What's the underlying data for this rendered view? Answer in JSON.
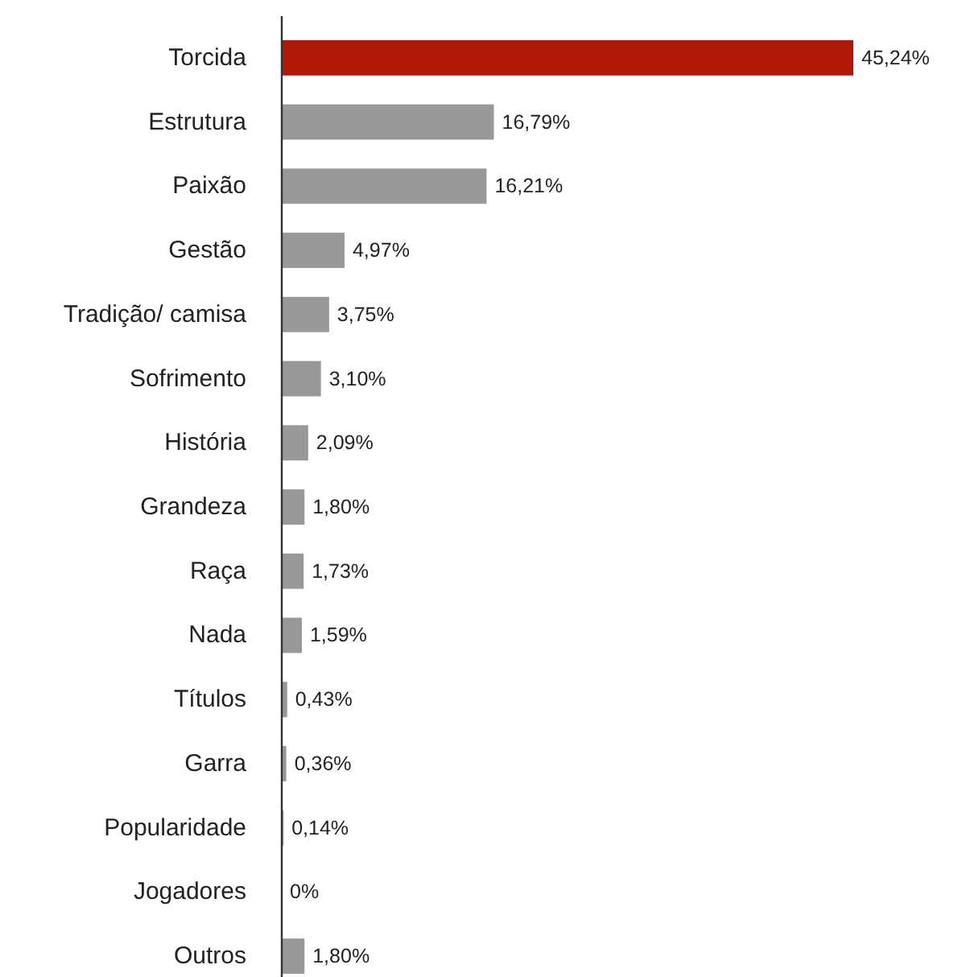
{
  "chart_data": {
    "type": "bar",
    "orientation": "horizontal",
    "categories": [
      "Torcida",
      "Estrutura",
      "Paixão",
      "Gestão",
      "Tradição/ camisa",
      "Sofrimento",
      "História",
      "Grandeza",
      "Raça",
      "Nada",
      "Títulos",
      "Garra",
      "Popularidade",
      "Jogadores",
      "Outros"
    ],
    "values": [
      45.24,
      16.79,
      16.21,
      4.97,
      3.75,
      3.1,
      2.09,
      1.8,
      1.73,
      1.59,
      0.43,
      0.36,
      0.14,
      0,
      1.8
    ],
    "colors": [
      "#b01808",
      "#999999",
      "#999999",
      "#999999",
      "#999999",
      "#999999",
      "#999999",
      "#999999",
      "#999999",
      "#999999",
      "#999999",
      "#999999",
      "#999999",
      "#999999",
      "#999999"
    ],
    "value_labels": [
      "45,24%",
      "16,79%",
      "16,21%",
      "4,97%",
      "3,75%",
      "3,10%",
      "2,09%",
      "1,80%",
      "1,73%",
      "1,59%",
      "0,43%",
      "0,36%",
      "0,14%",
      "0%",
      "1,80%"
    ]
  }
}
